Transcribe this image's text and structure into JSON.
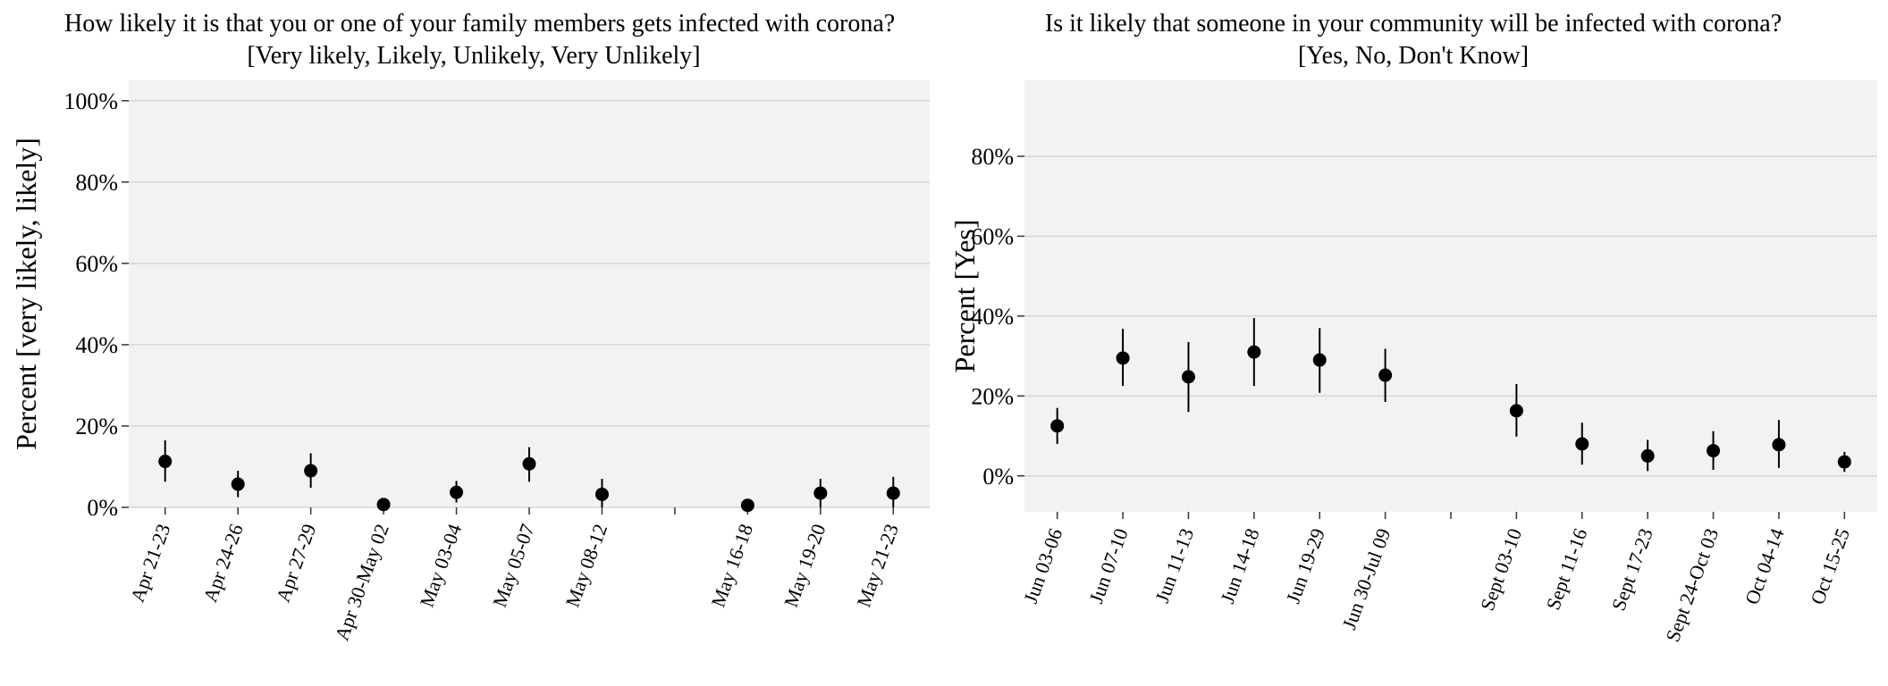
{
  "chart_data": [
    {
      "type": "scatter",
      "title": "How likely it is that you or one of your family members gets infected with corona?",
      "subtitle": "[Very likely, Likely, Unlikely, Very Unlikely]",
      "xlabel": "",
      "ylabel": "Percent [very likely, likely]",
      "ylim": [
        0,
        1.05
      ],
      "yticks": [
        "0%",
        "20%",
        "40%",
        "60%",
        "80%",
        "100%"
      ],
      "ytick_values": [
        0,
        0.2,
        0.4,
        0.6,
        0.8,
        1.0
      ],
      "categories": [
        "Apr 21-23",
        "Apr 24-26",
        "Apr 27-29",
        "Apr 30-May 02",
        "May 03-04",
        "May 05-07",
        "May 08-12",
        "",
        "May 16-18",
        "May 19-20",
        "May 21-23"
      ],
      "values": [
        0.113,
        0.057,
        0.09,
        0.007,
        0.037,
        0.107,
        0.032,
        null,
        0.005,
        0.035,
        0.035
      ],
      "ci_low": [
        0.063,
        0.025,
        0.048,
        0.0,
        0.012,
        0.063,
        0.0,
        null,
        0.0,
        0.0,
        0.0
      ],
      "ci_high": [
        0.165,
        0.09,
        0.133,
        0.018,
        0.065,
        0.148,
        0.07,
        null,
        0.015,
        0.07,
        0.075
      ],
      "grid": true
    },
    {
      "type": "scatter",
      "title": "Is it likely that someone in your community will be infected with corona?",
      "subtitle": "[Yes,  No,  Don't Know]",
      "xlabel": "",
      "ylabel": "Percent [Yes]",
      "ylim": [
        -0.09,
        0.99
      ],
      "yticks": [
        "0%",
        "20%",
        "40%",
        "60%",
        "80%"
      ],
      "ytick_values": [
        0,
        0.2,
        0.4,
        0.6,
        0.8
      ],
      "categories": [
        "Jun 03-06",
        "Jun 07-10",
        "Jun 11-13",
        "Jun 14-18",
        "Jun 19-29",
        "Jun 30-Jul 09",
        "",
        "Sept 03-10",
        "Sept 11-16",
        "Sept 17-23",
        "Sept 24-Oct 03",
        "Oct 04-14",
        "Oct 15-25"
      ],
      "values": [
        0.125,
        0.295,
        0.248,
        0.31,
        0.29,
        0.252,
        null,
        0.163,
        0.08,
        0.05,
        0.063,
        0.078,
        0.035
      ],
      "ci_low": [
        0.08,
        0.225,
        0.16,
        0.225,
        0.208,
        0.185,
        null,
        0.098,
        0.028,
        0.012,
        0.015,
        0.02,
        0.01
      ],
      "ci_high": [
        0.17,
        0.368,
        0.335,
        0.395,
        0.37,
        0.318,
        null,
        0.23,
        0.133,
        0.09,
        0.112,
        0.14,
        0.06
      ],
      "grid": true
    }
  ]
}
